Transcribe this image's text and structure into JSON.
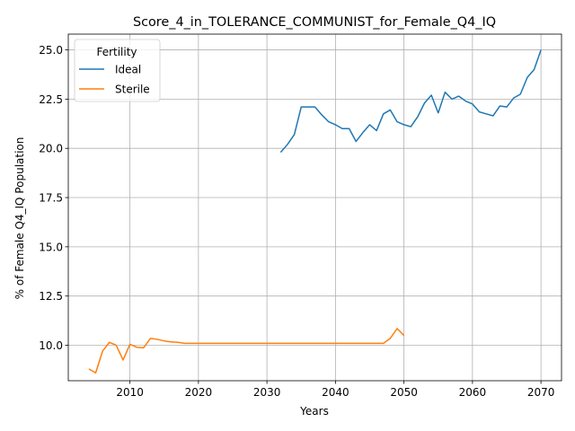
{
  "chart_data": {
    "type": "line",
    "title": "Score_4_in_TOLERANCE_COMMUNIST_for_Female_Q4_IQ",
    "xlabel": "Years",
    "ylabel": "% of Female Q4_IQ Population",
    "xlim": [
      2001,
      2073
    ],
    "ylim": [
      8.2,
      25.8
    ],
    "xticks": [
      2010,
      2020,
      2030,
      2040,
      2050,
      2060,
      2070
    ],
    "xtick_labels": [
      "2010",
      "2020",
      "2030",
      "2040",
      "2050",
      "2060",
      "2070"
    ],
    "yticks": [
      10.0,
      12.5,
      15.0,
      17.5,
      20.0,
      22.5,
      25.0
    ],
    "ytick_labels": [
      "10.0",
      "12.5",
      "15.0",
      "17.5",
      "20.0",
      "22.5",
      "25.0"
    ],
    "grid": true,
    "legend": {
      "title": "Fertility",
      "position": "top-left"
    },
    "series": [
      {
        "name": "Ideal",
        "color": "#1f77b4",
        "x": [
          2032,
          2033,
          2034,
          2035,
          2036,
          2037,
          2038,
          2039,
          2040,
          2041,
          2042,
          2043,
          2044,
          2045,
          2046,
          2047,
          2048,
          2049,
          2050,
          2051,
          2052,
          2053,
          2054,
          2055,
          2056,
          2057,
          2058,
          2059,
          2060,
          2061,
          2062,
          2063,
          2064,
          2065,
          2066,
          2067,
          2068,
          2069,
          2070
        ],
        "y": [
          19.8,
          20.2,
          20.7,
          22.1,
          22.1,
          22.1,
          21.7,
          21.35,
          21.2,
          21.0,
          21.0,
          20.35,
          20.8,
          21.2,
          20.9,
          21.75,
          21.95,
          21.35,
          21.2,
          21.1,
          21.6,
          22.3,
          22.7,
          21.8,
          22.85,
          22.5,
          22.65,
          22.4,
          22.25,
          21.85,
          21.75,
          21.65,
          22.15,
          22.1,
          22.55,
          22.75,
          23.6,
          24.0,
          25.0
        ]
      },
      {
        "name": "Sterile",
        "color": "#ff7f0e",
        "x": [
          2004,
          2005,
          2006,
          2007,
          2008,
          2009,
          2010,
          2011,
          2012,
          2013,
          2014,
          2015,
          2016,
          2017,
          2018,
          2019,
          2020,
          2021,
          2022,
          2023,
          2024,
          2025,
          2026,
          2027,
          2028,
          2029,
          2030,
          2031,
          2032,
          2033,
          2034,
          2035,
          2036,
          2037,
          2038,
          2039,
          2040,
          2041,
          2042,
          2043,
          2044,
          2045,
          2046,
          2047,
          2048,
          2049,
          2050
        ],
        "y": [
          8.8,
          8.6,
          9.7,
          10.15,
          10.0,
          9.25,
          10.05,
          9.9,
          9.87,
          10.35,
          10.3,
          10.22,
          10.17,
          10.15,
          10.1,
          10.1,
          10.1,
          10.1,
          10.1,
          10.1,
          10.1,
          10.1,
          10.1,
          10.1,
          10.1,
          10.1,
          10.1,
          10.1,
          10.1,
          10.1,
          10.1,
          10.1,
          10.1,
          10.1,
          10.1,
          10.1,
          10.1,
          10.1,
          10.1,
          10.1,
          10.1,
          10.1,
          10.1,
          10.1,
          10.35,
          10.85,
          10.5
        ]
      }
    ]
  }
}
